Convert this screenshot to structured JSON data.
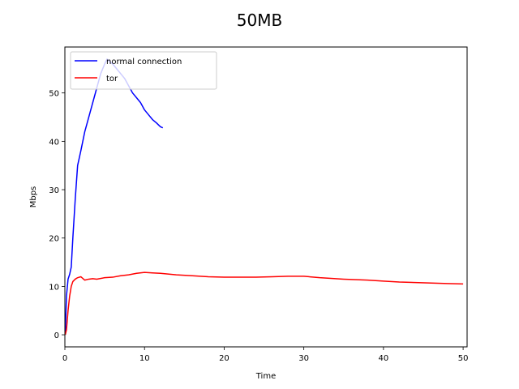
{
  "chart_data": {
    "type": "line",
    "title": "50MB",
    "xlabel": "Time",
    "ylabel": "Mbps",
    "xlim": [
      0,
      50.5
    ],
    "ylim": [
      -2.5,
      59.5
    ],
    "xticks": [
      0,
      10,
      20,
      30,
      40,
      50
    ],
    "yticks": [
      0,
      10,
      20,
      30,
      40,
      50
    ],
    "grid": false,
    "legend_position": "top-left",
    "series": [
      {
        "name": "normal connection",
        "color": "#0000ff",
        "x": [
          0.05,
          0.2,
          0.4,
          0.6,
          0.8,
          1.0,
          1.3,
          1.6,
          2.0,
          2.5,
          3.0,
          3.5,
          4.0,
          4.5,
          5.0,
          5.3,
          5.6,
          6.0,
          6.5,
          7.0,
          7.5,
          8.0,
          8.5,
          9.0,
          9.5,
          10.0,
          10.5,
          11.0,
          11.5,
          12.0,
          12.3
        ],
        "y": [
          0.0,
          8.0,
          11.5,
          12.5,
          14.0,
          20.0,
          28.0,
          35.0,
          38.0,
          42.0,
          45.0,
          48.0,
          51.0,
          54.0,
          56.0,
          57.0,
          56.5,
          56.0,
          55.0,
          54.0,
          53.0,
          51.5,
          50.0,
          49.0,
          48.0,
          46.5,
          45.5,
          44.5,
          43.8,
          43.0,
          42.8
        ]
      },
      {
        "name": "tor",
        "color": "#ff0000",
        "x": [
          0.05,
          0.2,
          0.4,
          0.6,
          0.8,
          1.0,
          1.3,
          1.6,
          2.0,
          2.5,
          3.0,
          3.5,
          4.0,
          5.0,
          6.0,
          7.0,
          8.0,
          9.0,
          10.0,
          11.0,
          12.0,
          14.0,
          16.0,
          18.0,
          20.0,
          22.0,
          24.0,
          26.0,
          28.0,
          30.0,
          32.0,
          35.0,
          38.0,
          40.0,
          42.0,
          44.0,
          46.0,
          48.0,
          50.0
        ],
        "y": [
          0.0,
          1.0,
          5.0,
          8.0,
          10.0,
          11.0,
          11.5,
          11.8,
          12.0,
          11.3,
          11.5,
          11.6,
          11.5,
          11.8,
          11.9,
          12.2,
          12.4,
          12.7,
          12.9,
          12.8,
          12.7,
          12.4,
          12.2,
          12.0,
          11.9,
          11.9,
          11.9,
          12.0,
          12.1,
          12.1,
          11.8,
          11.5,
          11.3,
          11.1,
          10.9,
          10.8,
          10.7,
          10.6,
          10.5
        ]
      }
    ]
  }
}
